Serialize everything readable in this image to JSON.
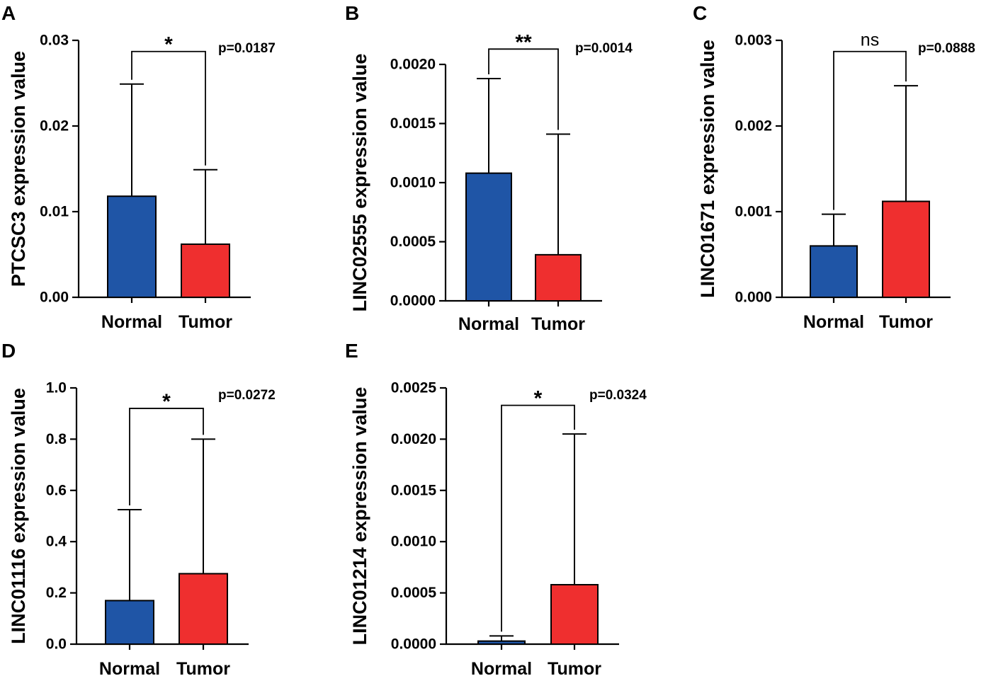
{
  "colors": {
    "normal": "#1f55a6",
    "tumor": "#ef2f2f"
  },
  "chart_data": [
    {
      "panel": "A",
      "type": "bar",
      "ylabel": "PTCSC3 expression value",
      "categories": [
        "Normal",
        "Tumor"
      ],
      "values": [
        0.0118,
        0.0062
      ],
      "error_upper": [
        0.0249,
        0.0149
      ],
      "ylim": [
        0,
        0.03
      ],
      "yticks": [
        0,
        0.01,
        0.02,
        0.03
      ],
      "ytick_labels": [
        "0.00",
        "0.01",
        "0.02",
        "0.03"
      ],
      "bracket_y": 0.0287,
      "significance": "*",
      "p_value": "p=0.0187"
    },
    {
      "panel": "B",
      "type": "bar",
      "ylabel": "LINC02555 expression value",
      "categories": [
        "Normal",
        "Tumor"
      ],
      "values": [
        0.00108,
        0.00039
      ],
      "error_upper": [
        0.00188,
        0.00141
      ],
      "ylim": [
        0,
        0.002
      ],
      "yticks": [
        0,
        0.0005,
        0.001,
        0.0015,
        0.002
      ],
      "ytick_labels": [
        "0.0000",
        "0.0005",
        "0.0010",
        "0.0015",
        "0.0020"
      ],
      "bracket_y": 0.00213,
      "significance": "**",
      "p_value": "p=0.0014"
    },
    {
      "panel": "C",
      "type": "bar",
      "ylabel": "LINC01671 expression value",
      "categories": [
        "Normal",
        "Tumor"
      ],
      "values": [
        0.0006,
        0.00112
      ],
      "error_upper": [
        0.00097,
        0.00247
      ],
      "ylim": [
        0,
        0.003
      ],
      "yticks": [
        0,
        0.001,
        0.002,
        0.003
      ],
      "ytick_labels": [
        "0.000",
        "0.001",
        "0.002",
        "0.003"
      ],
      "bracket_y": 0.00287,
      "significance": "ns",
      "p_value": "p=0.0888"
    },
    {
      "panel": "D",
      "type": "bar",
      "ylabel": "LINC01116 expression value",
      "categories": [
        "Normal",
        "Tumor"
      ],
      "values": [
        0.17,
        0.275
      ],
      "error_upper": [
        0.525,
        0.8
      ],
      "ylim": [
        0,
        1.0
      ],
      "yticks": [
        0,
        0.2,
        0.4,
        0.6,
        0.8,
        1.0
      ],
      "ytick_labels": [
        "0.0",
        "0.2",
        "0.4",
        "0.6",
        "0.8",
        "1.0"
      ],
      "bracket_y": 0.92,
      "significance": "*",
      "p_value": "p=0.0272"
    },
    {
      "panel": "E",
      "type": "bar",
      "ylabel": "LINC01214 expression value",
      "categories": [
        "Normal",
        "Tumor"
      ],
      "values": [
        3e-05,
        0.00058
      ],
      "error_upper": [
        8e-05,
        0.00205
      ],
      "ylim": [
        0,
        0.0025
      ],
      "yticks": [
        0,
        0.0005,
        0.001,
        0.0015,
        0.002,
        0.0025
      ],
      "ytick_labels": [
        "0.0000",
        "0.0005",
        "0.0010",
        "0.0015",
        "0.0020",
        "0.0025"
      ],
      "bracket_y": 0.00233,
      "significance": "*",
      "p_value": "p=0.0324"
    }
  ]
}
